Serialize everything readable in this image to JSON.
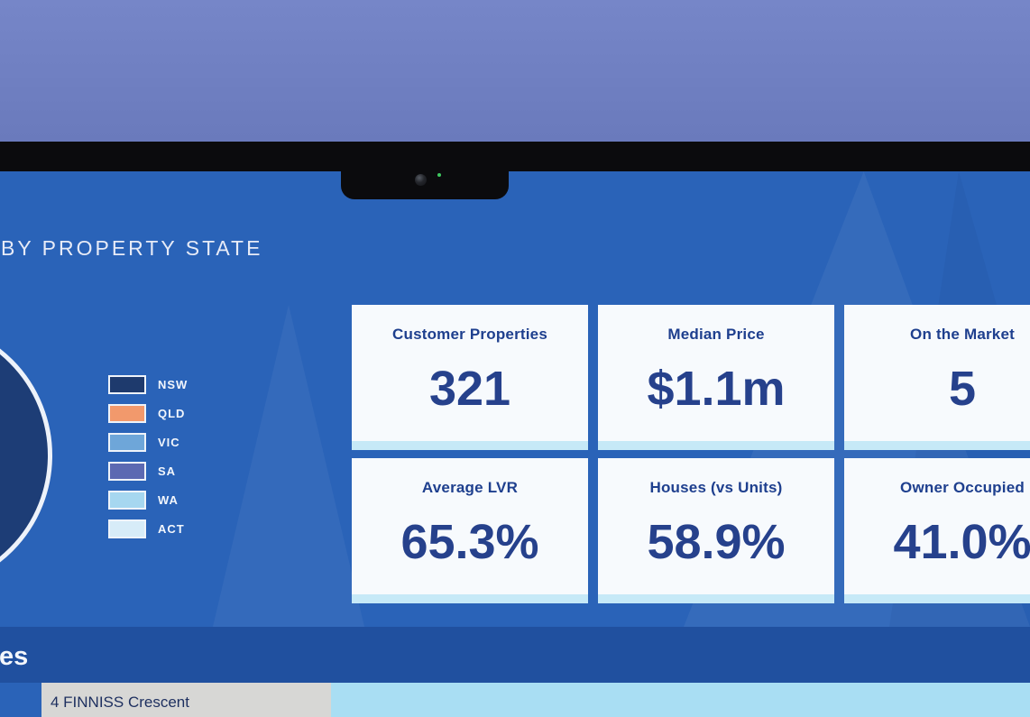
{
  "device": {
    "wallpaper_color": "#7383c6",
    "bezel_color": "#0b0b0d",
    "camera_led_color": "#3ec95f"
  },
  "dashboard": {
    "background_color": "#2a63b8",
    "band_color": "#20509f",
    "card_strip_color": "#c6e9f7",
    "section_title": "BY PROPERTY STATE",
    "legend": [
      {
        "label": "NSW",
        "color": "#1e3a6d"
      },
      {
        "label": "QLD",
        "color": "#f2996c"
      },
      {
        "label": "VIC",
        "color": "#6ea6d9"
      },
      {
        "label": "SA",
        "color": "#5c69b2"
      },
      {
        "label": "WA",
        "color": "#a6d7f0"
      },
      {
        "label": "ACT",
        "color": "#d7ecf8"
      }
    ],
    "stats": [
      {
        "label": "Customer Properties",
        "value": "321"
      },
      {
        "label": "Median Price",
        "value": "$1.1m"
      },
      {
        "label": "On the Market",
        "value": "5"
      },
      {
        "label": "Average LVR",
        "value": "65.3%"
      },
      {
        "label": "Houses (vs Units)",
        "value": "58.9%"
      },
      {
        "label": "Owner Occupied",
        "value": "41.0%"
      }
    ],
    "properties_band_text": "es",
    "table": {
      "first_row_address": "4 FINNISS Crescent"
    }
  },
  "chart_data": {
    "type": "pie",
    "title": "BY PROPERTY STATE",
    "categories": [
      "NSW",
      "QLD",
      "VIC",
      "SA",
      "WA",
      "ACT"
    ],
    "colors": [
      "#1e3a6d",
      "#f2996c",
      "#6ea6d9",
      "#5c69b2",
      "#a6d7f0",
      "#d7ecf8"
    ],
    "legend_position": "right"
  }
}
